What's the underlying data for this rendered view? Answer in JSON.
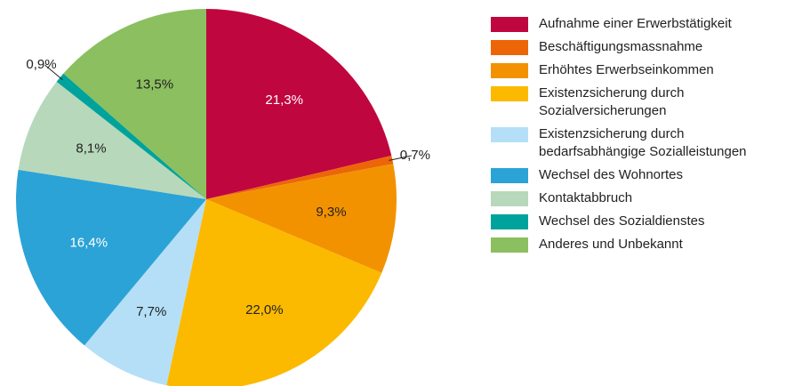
{
  "chart_data": {
    "type": "pie",
    "categories": [
      "Aufnahme einer Erwerbstätigkeit",
      "Beschäftigungsmassnahme",
      "Erhöhtes Erwerbseinkommen",
      "Existenzsicherung durch Sozialversicherungen",
      "Existenzsicherung durch bedarfsabhängige Sozialleistungen",
      "Wechsel des Wohnortes",
      "Kontaktabbruch",
      "Wechsel des Sozialdienstes",
      "Anderes und Unbekannt"
    ],
    "values": [
      21.3,
      0.7,
      9.3,
      22.0,
      7.7,
      16.4,
      8.1,
      0.9,
      13.5
    ],
    "value_labels": [
      "21,3%",
      "0,7%",
      "9,3%",
      "22,0%",
      "7,7%",
      "16,4%",
      "8,1%",
      "0,9%",
      "13,5%"
    ],
    "colors": [
      "#c0063f",
      "#ec6608",
      "#f39200",
      "#fbba00",
      "#b5dff7",
      "#2ba3d6",
      "#b7d8ba",
      "#00a39b",
      "#8bbf5f"
    ],
    "legend": "right"
  }
}
